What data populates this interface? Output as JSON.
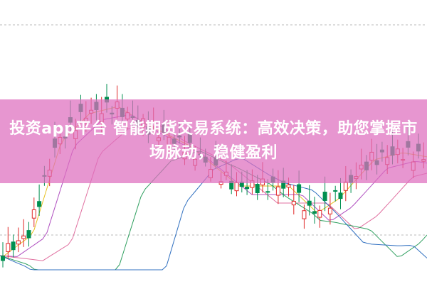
{
  "banner": {
    "title": "投资app平台 智能期货交易系统：高效决策，助您掌握市场脉动，稳健盈利"
  }
}
